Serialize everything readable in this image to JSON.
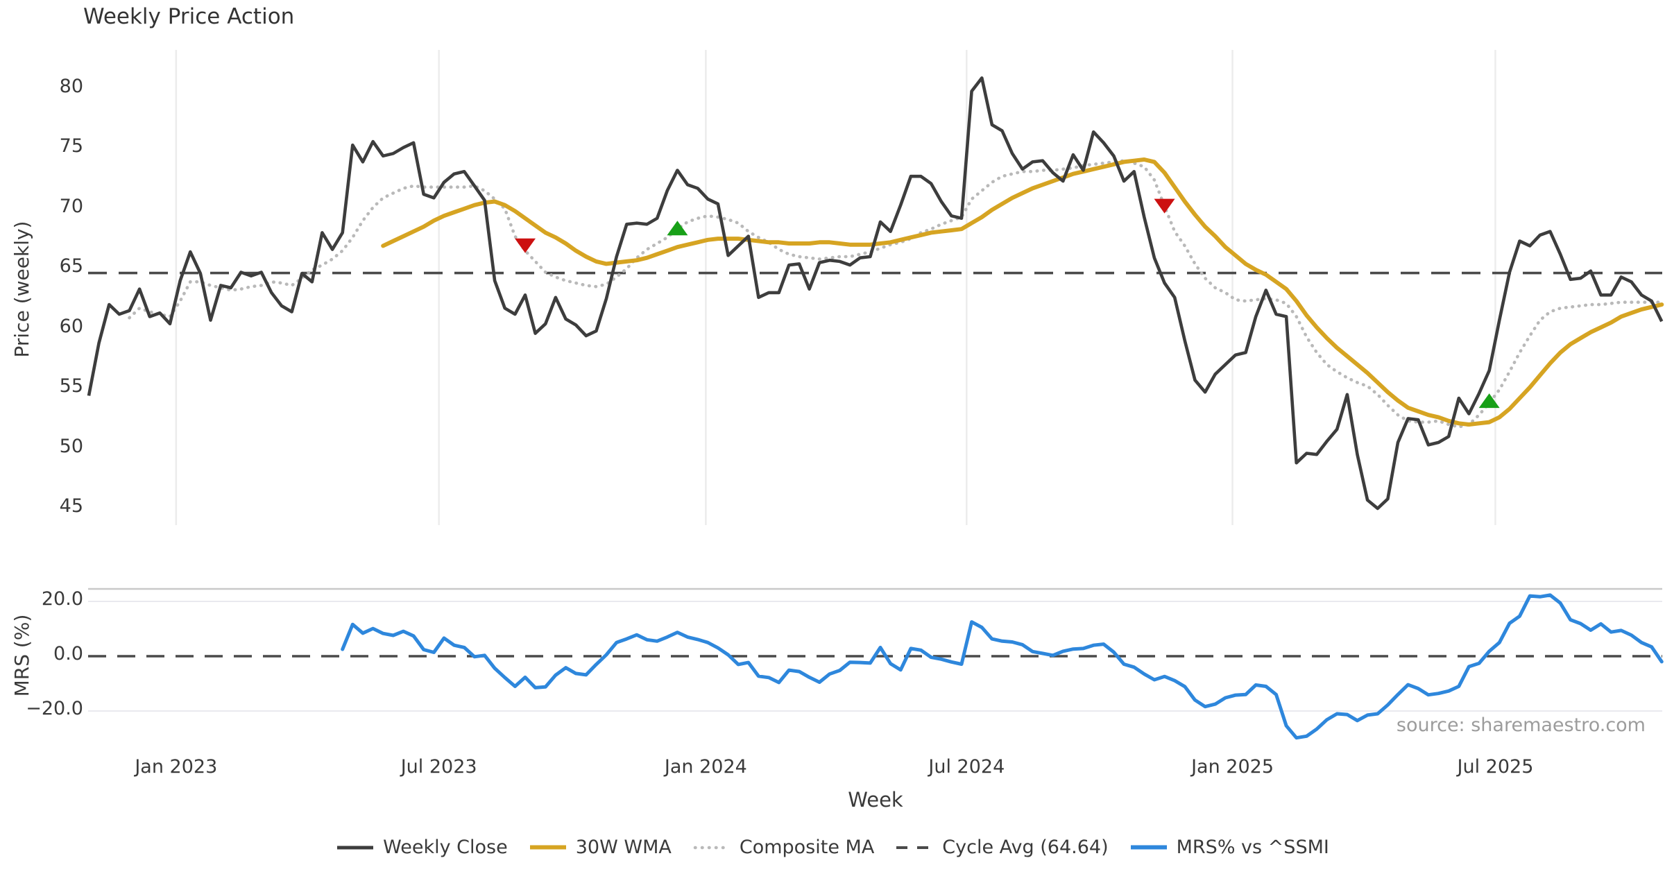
{
  "title": "Weekly Price Action",
  "source_note": "source: sharemaestro.com",
  "colors": {
    "close": "#3d3d3d",
    "wma": "#d6a422",
    "composite": "#b9b9b9",
    "cycle_avg": "#4a4a4a",
    "mrs": "#2e87dc",
    "marker_down": "#cc1111",
    "marker_up": "#18a018",
    "grid": "#ececec",
    "mrs_grid": "#e9e9ef",
    "panel_border": "#c9c9c9",
    "text": "#3a3a3a",
    "source_text": "#9c9c9c"
  },
  "x_axis": {
    "label": "Week",
    "ticks": [
      {
        "label": "Jan 2023",
        "week": 8.6
      },
      {
        "label": "Jul 2023",
        "week": 34.5
      },
      {
        "label": "Jan 2024",
        "week": 60.8
      },
      {
        "label": "Jul 2024",
        "week": 86.5
      },
      {
        "label": "Jan 2025",
        "week": 112.7
      },
      {
        "label": "Jul 2025",
        "week": 138.6
      }
    ]
  },
  "chart_data": {
    "type": "line",
    "title": "Weekly Price Action",
    "xlabel": "Week",
    "x_tick_labels": [
      "Jan 2023",
      "Jul 2023",
      "Jan 2024",
      "Jul 2024",
      "Jan 2025",
      "Jul 2025"
    ],
    "legend_position": "bottom-center",
    "grid": "vertical-months",
    "panels": [
      {
        "name": "price",
        "ylabel": "Price (weekly)",
        "ylim": [
          43.4,
          83.2
        ],
        "y_ticks": [
          {
            "label": "80",
            "value": 80
          },
          {
            "label": "75",
            "value": 75
          },
          {
            "label": "70",
            "value": 70
          },
          {
            "label": "65",
            "value": 65
          },
          {
            "label": "60",
            "value": 60
          },
          {
            "label": "55",
            "value": 55
          },
          {
            "label": "50",
            "value": 50
          },
          {
            "label": "45",
            "value": 45
          }
        ],
        "cycle_avg_value": 64.64,
        "series": [
          {
            "name": "Weekly Close",
            "style": "solid-dark",
            "values": [
              54.4,
              58.8,
              62.0,
              61.2,
              61.5,
              63.3,
              61.0,
              61.3,
              60.4,
              64.0,
              66.4,
              64.6,
              60.7,
              63.6,
              63.4,
              64.7,
              64.4,
              64.7,
              63.0,
              61.9,
              61.4,
              64.6,
              63.9,
              68.0,
              66.6,
              68.0,
              75.3,
              73.9,
              75.6,
              74.4,
              74.6,
              75.1,
              75.5,
              71.2,
              70.9,
              72.2,
              72.9,
              73.1,
              71.9,
              70.7,
              64.0,
              61.7,
              61.2,
              62.8,
              59.6,
              60.4,
              62.6,
              60.8,
              60.3,
              59.4,
              59.8,
              62.5,
              66.0,
              68.7,
              68.8,
              68.7,
              69.2,
              71.5,
              73.2,
              72.0,
              71.7,
              70.8,
              70.4,
              66.1,
              66.9,
              67.7,
              62.6,
              63.0,
              63.0,
              65.3,
              65.4,
              63.3,
              65.5,
              65.7,
              65.6,
              65.3,
              65.9,
              66.0,
              68.9,
              68.1,
              70.3,
              72.7,
              72.7,
              72.1,
              70.6,
              69.4,
              69.2,
              79.8,
              80.9,
              77.0,
              76.5,
              74.6,
              73.3,
              73.9,
              74.0,
              73.0,
              72.3,
              74.5,
              73.2,
              76.4,
              75.5,
              74.4,
              72.3,
              73.1,
              69.3,
              65.9,
              63.8,
              62.6,
              59.0,
              55.7,
              54.7,
              56.2,
              57.0,
              57.8,
              58.0,
              61.0,
              63.2,
              61.2,
              61.0,
              48.8,
              49.6,
              49.5,
              50.6,
              51.6,
              54.5,
              49.5,
              45.7,
              45.0,
              45.8,
              50.5,
              52.5,
              52.4,
              50.3,
              50.5,
              51.0,
              54.2,
              52.9,
              54.6,
              56.5,
              60.7,
              64.7,
              67.3,
              66.9,
              67.8,
              68.1,
              66.2,
              64.1,
              64.2,
              64.8,
              62.8,
              62.8,
              64.3,
              63.9,
              62.8,
              62.3,
              60.6
            ]
          },
          {
            "name": "30W WMA",
            "style": "solid-gold",
            "values": [
              null,
              null,
              null,
              null,
              null,
              null,
              null,
              null,
              null,
              null,
              null,
              null,
              null,
              null,
              null,
              null,
              null,
              null,
              null,
              null,
              null,
              null,
              null,
              null,
              null,
              null,
              null,
              null,
              null,
              66.9,
              67.3,
              67.7,
              68.1,
              68.5,
              69.0,
              69.4,
              69.7,
              70.0,
              70.3,
              70.5,
              70.6,
              70.3,
              69.8,
              69.2,
              68.6,
              68.0,
              67.6,
              67.1,
              66.5,
              66.0,
              65.6,
              65.4,
              65.5,
              65.6,
              65.7,
              65.9,
              66.2,
              66.5,
              66.8,
              67.0,
              67.2,
              67.4,
              67.5,
              67.5,
              67.5,
              67.4,
              67.3,
              67.2,
              67.2,
              67.1,
              67.1,
              67.1,
              67.2,
              67.2,
              67.1,
              67.0,
              67.0,
              67.0,
              67.1,
              67.2,
              67.4,
              67.6,
              67.8,
              68.0,
              68.1,
              68.2,
              68.3,
              68.8,
              69.3,
              69.9,
              70.4,
              70.9,
              71.3,
              71.7,
              72.0,
              72.3,
              72.6,
              72.9,
              73.1,
              73.3,
              73.5,
              73.7,
              73.9,
              74.0,
              74.1,
              73.9,
              73.0,
              71.8,
              70.6,
              69.5,
              68.5,
              67.7,
              66.8,
              66.1,
              65.4,
              64.9,
              64.5,
              63.9,
              63.3,
              62.3,
              61.1,
              60.1,
              59.2,
              58.4,
              57.7,
              57.0,
              56.3,
              55.5,
              54.7,
              54.0,
              53.4,
              53.1,
              52.8,
              52.6,
              52.3,
              52.1,
              52.0,
              52.1,
              52.2,
              52.6,
              53.3,
              54.2,
              55.1,
              56.1,
              57.1,
              58.0,
              58.7,
              59.2,
              59.7,
              60.1,
              60.5,
              61.0,
              61.3,
              61.6,
              61.8,
              62.0
            ]
          },
          {
            "name": "Composite MA",
            "style": "dotted-gray",
            "values": [
              null,
              null,
              null,
              null,
              60.9,
              61.7,
              61.4,
              61.2,
              61.0,
              62.3,
              63.9,
              63.9,
              63.6,
              63.4,
              63.2,
              63.3,
              63.5,
              63.6,
              63.9,
              63.8,
              63.6,
              64.2,
              64.9,
              65.3,
              65.8,
              66.5,
              67.6,
              69.0,
              70.1,
              70.9,
              71.3,
              71.7,
              71.9,
              71.8,
              71.8,
              71.8,
              71.8,
              71.8,
              71.9,
              71.5,
              70.8,
              70.0,
              67.7,
              66.5,
              65.6,
              64.7,
              64.3,
              64.0,
              63.8,
              63.6,
              63.5,
              63.7,
              64.3,
              65.0,
              65.9,
              66.6,
              67.1,
              67.6,
              68.3,
              68.9,
              69.2,
              69.4,
              69.3,
              69.1,
              68.8,
              68.1,
              67.6,
              67.2,
              66.6,
              66.2,
              66.0,
              65.9,
              65.8,
              65.9,
              66.0,
              66.0,
              66.2,
              66.4,
              66.7,
              67.0,
              67.2,
              67.5,
              68.0,
              68.3,
              68.7,
              69.0,
              69.3,
              70.8,
              71.5,
              72.2,
              72.7,
              72.9,
              73.1,
              73.1,
              73.2,
              73.2,
              73.3,
              73.4,
              73.6,
              73.7,
              73.8,
              73.9,
              74.0,
              73.8,
              73.5,
              72.4,
              70.2,
              68.1,
              66.9,
              65.4,
              64.2,
              63.4,
              63.0,
              62.4,
              62.3,
              62.4,
              62.5,
              62.4,
              62.1,
              61.0,
              59.3,
              58.0,
              57.0,
              56.4,
              55.9,
              55.5,
              55.2,
              54.5,
              53.6,
              52.8,
              52.3,
              52.2,
              52.2,
              52.3,
              52.0,
              51.8,
              52.0,
              52.8,
              53.8,
              54.9,
              56.4,
              58.0,
              59.4,
              60.7,
              61.4,
              61.7,
              61.8,
              61.9,
              62.0,
              62.0,
              62.1,
              62.2,
              62.2,
              62.2,
              62.2,
              62.2
            ]
          },
          {
            "name": "Cycle Avg (64.64)",
            "style": "dashed-dark",
            "constant": 64.64
          }
        ],
        "markers": [
          {
            "week": 43,
            "price": 67.0,
            "dir": "down"
          },
          {
            "week": 58,
            "price": 68.3,
            "dir": "up"
          },
          {
            "week": 106,
            "price": 70.3,
            "dir": "down"
          },
          {
            "week": 138,
            "price": 53.9,
            "dir": "up"
          }
        ]
      },
      {
        "name": "mrs",
        "ylabel": "MRS (%)",
        "ylim": [
          -31.4,
          24.6
        ],
        "y_ticks": [
          {
            "label": "20.0",
            "value": 20
          },
          {
            "label": "0.0",
            "value": 0
          },
          {
            "label": "−20.0",
            "value": -20
          }
        ],
        "zero_line": 0,
        "series": [
          {
            "name": "MRS% vs ^SSMI",
            "style": "solid-blue",
            "values": [
              null,
              null,
              null,
              null,
              null,
              null,
              null,
              null,
              null,
              null,
              null,
              null,
              null,
              null,
              null,
              null,
              null,
              null,
              null,
              null,
              null,
              null,
              null,
              null,
              null,
              2.5,
              11.6,
              8.4,
              10.1,
              8.3,
              7.6,
              9.1,
              7.4,
              2.4,
              1.4,
              6.6,
              4.0,
              3.2,
              -0.2,
              0.3,
              -4.4,
              -7.8,
              -11.0,
              -7.7,
              -11.5,
              -11.2,
              -6.9,
              -4.2,
              -6.3,
              -6.8,
              -3.0,
              0.5,
              5.0,
              6.3,
              7.8,
              6.0,
              5.5,
              7.0,
              8.7,
              7.0,
              6.1,
              5.0,
              3.0,
              0.5,
              -3.0,
              -2.3,
              -7.3,
              -7.8,
              -9.6,
              -5.1,
              -5.6,
              -7.7,
              -9.5,
              -6.5,
              -5.2,
              -2.2,
              -2.3,
              -2.5,
              3.2,
              -2.7,
              -5.0,
              2.8,
              2.2,
              -0.4,
              -1.1,
              -2.1,
              -2.9,
              12.5,
              10.5,
              6.3,
              5.5,
              5.2,
              4.2,
              1.7,
              1.0,
              0.3,
              1.8,
              2.6,
              2.8,
              4.0,
              4.4,
              1.5,
              -2.9,
              -4.0,
              -6.5,
              -8.6,
              -7.4,
              -8.9,
              -11.1,
              -16.0,
              -18.4,
              -17.5,
              -15.2,
              -14.2,
              -14.0,
              -10.5,
              -11.0,
              -14.0,
              -25.4,
              -29.8,
              -29.2,
              -26.6,
              -23.2,
              -21.0,
              -21.3,
              -23.5,
              -21.5,
              -21.0,
              -17.8,
              -14.0,
              -10.4,
              -11.8,
              -14.1,
              -13.6,
              -12.7,
              -11.0,
              -3.8,
              -2.6,
              1.8,
              5.0,
              12.0,
              14.6,
              22.0,
              21.7,
              22.3,
              19.4,
              13.3,
              11.9,
              9.5,
              11.8,
              8.8,
              9.4,
              7.7,
              5.0,
              3.4,
              -2.0
            ]
          }
        ]
      }
    ]
  }
}
